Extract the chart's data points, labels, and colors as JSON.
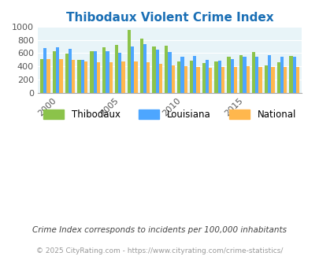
{
  "title": "Thibodaux Violent Crime Index",
  "years": [
    1999,
    2000,
    2001,
    2002,
    2003,
    2004,
    2005,
    2006,
    2007,
    2008,
    2009,
    2010,
    2011,
    2012,
    2013,
    2014,
    2015,
    2016,
    2017,
    2018,
    2019
  ],
  "thibodaux": [
    510,
    635,
    590,
    500,
    635,
    690,
    730,
    950,
    825,
    700,
    710,
    475,
    480,
    445,
    475,
    540,
    575,
    615,
    410,
    465,
    555
  ],
  "louisiana": [
    680,
    690,
    660,
    500,
    635,
    635,
    600,
    700,
    735,
    650,
    615,
    550,
    560,
    500,
    480,
    510,
    550,
    545,
    565,
    545,
    550
  ],
  "national": [
    510,
    510,
    500,
    475,
    465,
    465,
    475,
    475,
    460,
    435,
    410,
    400,
    395,
    380,
    385,
    390,
    400,
    395,
    385,
    390,
    385
  ],
  "color_thibodaux": "#8bc34a",
  "color_louisiana": "#4da6ff",
  "color_national": "#ffb74d",
  "bg_color": "#e8f4f8",
  "title_color": "#1a6fb5",
  "footnote1": "Crime Index corresponds to incidents per 100,000 inhabitants",
  "footnote2": "© 2025 CityRating.com - https://www.cityrating.com/crime-statistics/",
  "ylim": [
    0,
    1000
  ],
  "yticks": [
    0,
    200,
    400,
    600,
    800,
    1000
  ]
}
